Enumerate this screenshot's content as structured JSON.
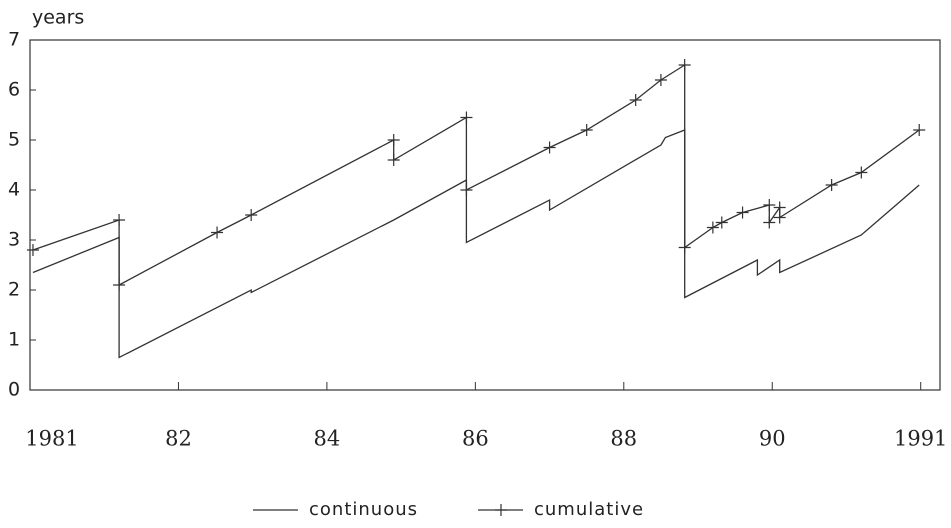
{
  "chart_data": {
    "type": "line",
    "y_label": "years",
    "xlim": [
      0,
      6.13
    ],
    "xticks": [
      {
        "value": 0,
        "label": "1981"
      },
      {
        "value": 1,
        "label": "82"
      },
      {
        "value": 2,
        "label": "84"
      },
      {
        "value": 3,
        "label": "86"
      },
      {
        "value": 4,
        "label": "88"
      },
      {
        "value": 5,
        "label": "90"
      },
      {
        "value": 6,
        "label": "1991"
      }
    ],
    "ylim": [
      0,
      7
    ],
    "yticks": [
      0,
      1,
      2,
      3,
      4,
      5,
      6,
      7
    ],
    "legend": "bottom",
    "series": [
      {
        "name": "continuous",
        "color": "#333333",
        "marker": "none",
        "x": [
          0.02,
          0.6,
          0.6,
          1.49,
          1.49,
          2.45,
          2.94,
          2.94,
          3.5,
          3.5,
          4.25,
          4.28,
          4.41,
          4.41,
          4.9,
          4.9,
          5.05,
          5.05,
          5.6,
          5.99
        ],
        "values": [
          2.35,
          3.05,
          0.65,
          2.0,
          1.95,
          3.4,
          4.2,
          2.95,
          3.8,
          3.6,
          4.9,
          5.05,
          5.2,
          1.85,
          2.6,
          2.3,
          2.6,
          2.35,
          3.1,
          4.1
        ]
      },
      {
        "name": "cumulative",
        "color": "#333333",
        "marker": "plus",
        "x": [
          0.02,
          0.6,
          0.6,
          1.26,
          1.49,
          2.45,
          2.45,
          2.94,
          2.94,
          3.5,
          3.75,
          4.08,
          4.25,
          4.41,
          4.41,
          4.6,
          4.66,
          4.8,
          4.98,
          4.98,
          5.05,
          5.05,
          5.4,
          5.6,
          5.99
        ],
        "values": [
          2.8,
          3.4,
          2.1,
          3.15,
          3.5,
          5.0,
          4.6,
          5.45,
          4.0,
          4.85,
          5.2,
          5.8,
          6.2,
          6.5,
          2.85,
          3.25,
          3.35,
          3.55,
          3.7,
          3.35,
          3.65,
          3.45,
          4.1,
          4.35,
          5.2
        ]
      }
    ]
  }
}
